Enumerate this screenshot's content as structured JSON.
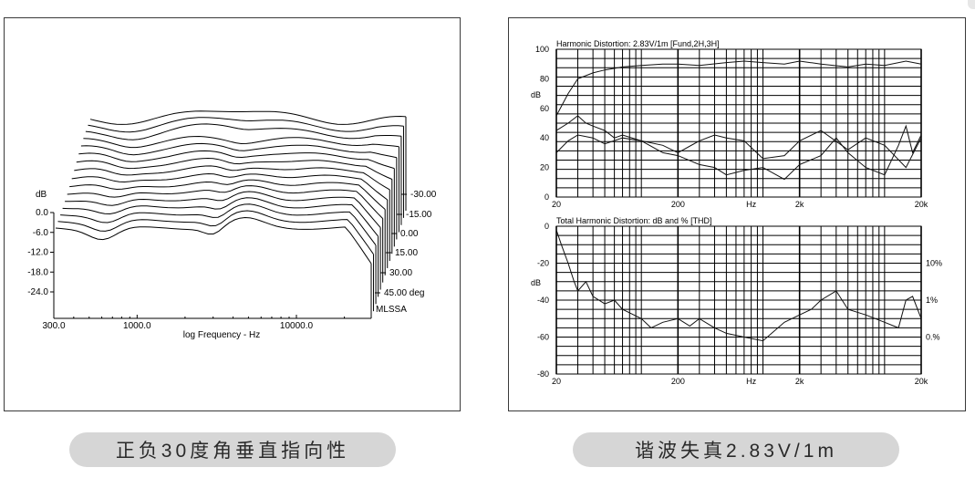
{
  "captions": {
    "left": "正负30度角垂直指向性",
    "right": "谐波失真2.83V/1m"
  },
  "chart_data": [
    {
      "type": "waterfall",
      "xlabel": "log Frequency - Hz",
      "ylabel": "dB",
      "x_ticks": [
        "300.0",
        "1000.0",
        "10000.0"
      ],
      "x_tick_values": [
        300,
        1000,
        10000
      ],
      "y_ticks": [
        "0.0",
        "-6.0",
        "-12.0",
        "-18.0",
        "-24.0"
      ],
      "y_tick_values": [
        0,
        -6,
        -12,
        -18,
        -24
      ],
      "angle_labels": [
        "-30.00",
        "-15.00",
        "0.00",
        "15.00",
        "30.00",
        "45.00 deg"
      ],
      "software_label": "MLSSA",
      "slice_count": 16
    },
    {
      "type": "line",
      "title": "Harmonic Distortion: 2.83V/1m [Fund,2H,3H]",
      "ylabel": "dB",
      "xlabel": "Hz",
      "x_ticks": [
        "20",
        "200",
        "Hz",
        "2k",
        "20k"
      ],
      "y_ticks": [
        "100",
        "80",
        "60",
        "40",
        "20",
        "0"
      ],
      "ylim": [
        0,
        100
      ],
      "grid": true,
      "series": [
        {
          "x": [
            20,
            25,
            30,
            40,
            50,
            70,
            100,
            150,
            200,
            300,
            500,
            700,
            1000,
            1500,
            2000,
            3000,
            5000,
            7000,
            10000,
            15000,
            20000
          ],
          "values": [
            55,
            70,
            80,
            84,
            86,
            88,
            89,
            90,
            90,
            89,
            91,
            92,
            91,
            90,
            92,
            90,
            88,
            90,
            89,
            92,
            90
          ]
        },
        {
          "x": [
            20,
            25,
            30,
            35,
            40,
            50,
            60,
            70,
            100,
            150,
            200,
            300,
            400,
            500,
            700,
            1000,
            1500,
            2000,
            3000,
            5000,
            7000,
            10000,
            15000,
            20000
          ],
          "values": [
            45,
            50,
            55,
            50,
            48,
            45,
            40,
            42,
            38,
            35,
            30,
            38,
            42,
            40,
            38,
            26,
            28,
            38,
            45,
            32,
            40,
            35,
            20,
            40
          ]
        },
        {
          "x": [
            20,
            25,
            30,
            40,
            50,
            70,
            100,
            150,
            200,
            300,
            400,
            500,
            700,
            1000,
            1500,
            2000,
            3000,
            4000,
            5000,
            7000,
            10000,
            13000,
            15000,
            17000,
            20000
          ],
          "values": [
            30,
            38,
            42,
            40,
            36,
            40,
            38,
            30,
            28,
            22,
            20,
            15,
            18,
            20,
            12,
            22,
            28,
            40,
            30,
            20,
            15,
            35,
            48,
            30,
            42
          ]
        }
      ]
    },
    {
      "type": "line",
      "title": "Total Harmonic Distortion: dB and % [THD]",
      "ylabel": "dB",
      "x_ticks": [
        "20",
        "200",
        "Hz",
        "2k",
        "20k"
      ],
      "y_ticks": [
        "0",
        "-20",
        "-40",
        "-60",
        "-80"
      ],
      "ylim": [
        -80,
        0
      ],
      "right_ticks": [
        "10%",
        "1%",
        "0.%"
      ],
      "right_tick_values": [
        -20,
        -40,
        -60
      ],
      "grid": true,
      "series": [
        {
          "x": [
            20,
            22,
            25,
            28,
            30,
            35,
            40,
            50,
            60,
            70,
            100,
            120,
            150,
            200,
            250,
            300,
            400,
            500,
            700,
            1000,
            1500,
            2000,
            2500,
            3000,
            4000,
            5000,
            7000,
            10000,
            13000,
            15000,
            17000,
            20000
          ],
          "values": [
            -2,
            -10,
            -20,
            -30,
            -35,
            -30,
            -38,
            -42,
            -40,
            -45,
            -50,
            -55,
            -52,
            -50,
            -54,
            -50,
            -55,
            -58,
            -60,
            -62,
            -52,
            -48,
            -45,
            -40,
            -35,
            -45,
            -48,
            -52,
            -55,
            -40,
            -38,
            -50
          ]
        }
      ]
    }
  ]
}
